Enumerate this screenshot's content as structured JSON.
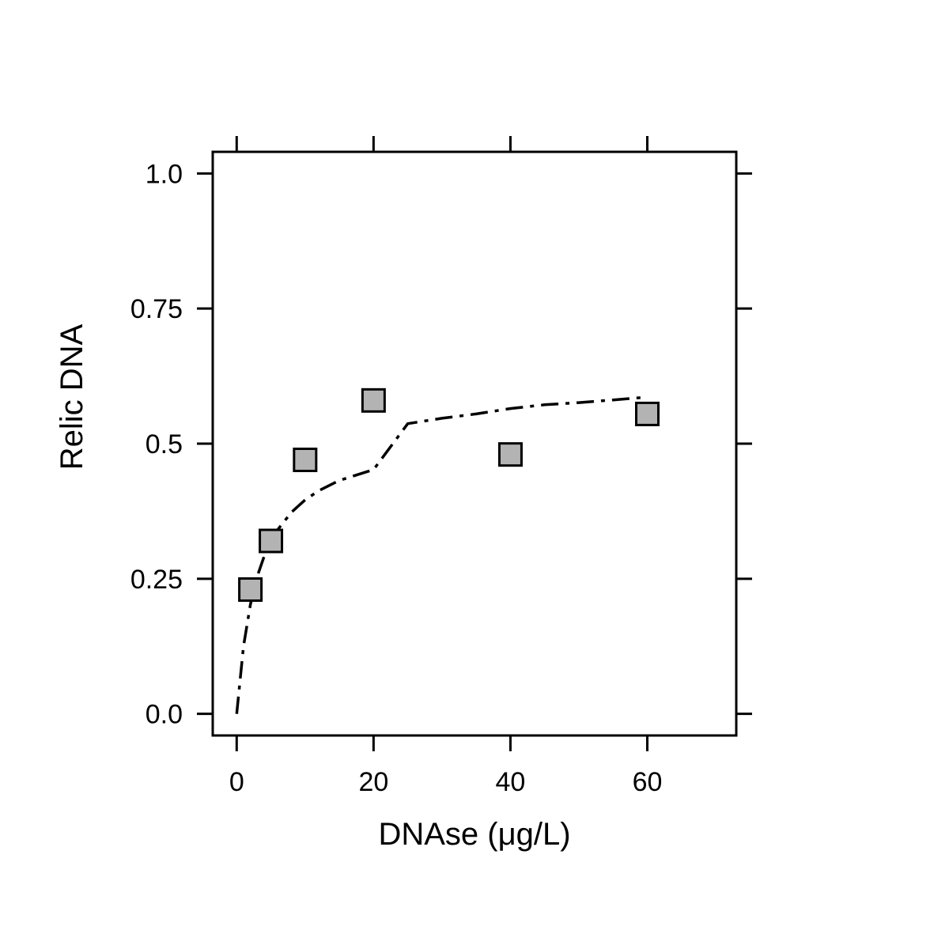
{
  "chart_data": {
    "type": "scatter",
    "title": "",
    "xlabel": "DNAse (μg/L)",
    "ylabel": "Relic DNA",
    "xlim": [
      -3.5,
      73
    ],
    "ylim": [
      -0.04,
      1.04
    ],
    "x_ticks": [
      0,
      20,
      40,
      60
    ],
    "x_tick_labels": [
      "0",
      "20",
      "40",
      "60"
    ],
    "y_ticks": [
      0,
      0.25,
      0.5,
      0.75,
      1.0
    ],
    "y_tick_labels": [
      "0.0",
      "0.25",
      "0.5",
      "0.75",
      "1.0"
    ],
    "grid": false,
    "legend": "none",
    "series": [
      {
        "type": "scatter",
        "marker": "square",
        "fill_color": "#b3b3b3",
        "edge_color": "#000000",
        "x": [
          2,
          5,
          10,
          20,
          40,
          60
        ],
        "y": [
          0.23,
          0.32,
          0.47,
          0.58,
          0.48,
          0.555
        ]
      },
      {
        "type": "line",
        "line_style": "dash-dot",
        "color": "#000000",
        "x": [
          0,
          1,
          2,
          3,
          4,
          5,
          6,
          8,
          10,
          12,
          15,
          20,
          25,
          30,
          35,
          40,
          45,
          50,
          55,
          60
        ],
        "y": [
          0.0,
          0.125,
          0.202,
          0.254,
          0.291,
          0.319,
          0.341,
          0.373,
          0.396,
          0.413,
          0.432,
          0.452,
          0.537,
          0.547,
          0.555,
          0.565,
          0.572,
          0.576,
          0.581,
          0.586
        ]
      }
    ]
  }
}
